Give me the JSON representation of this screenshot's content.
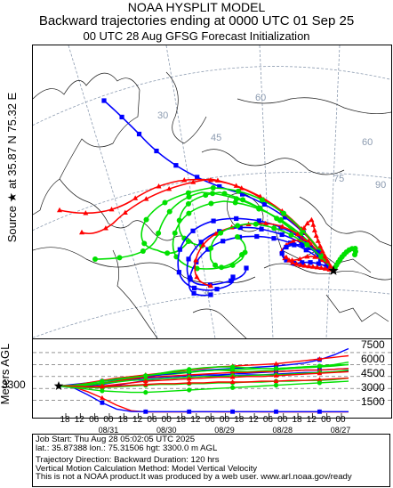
{
  "header": {
    "line1": "NOAA HYSPLIT MODEL",
    "line2": "Backward trajectories ending at 0000 UTC 01 Sep 25",
    "line3": "00 UTC 28 Aug    GFSG  Forecast Initialization"
  },
  "side_labels": {
    "source": "Source ★ at   35.87 N   75.32 E",
    "meters": "Meters AGL"
  },
  "map": {
    "grid_labels": [
      "60",
      "30",
      "45",
      "60",
      "75",
      "90",
      "45",
      "30"
    ],
    "colors": {
      "red": "#ff0000",
      "blue": "#0000ff",
      "green": "#00e000",
      "map_lines": "#1a1a1a",
      "graticule": "#8c9bb0"
    }
  },
  "chart_data": {
    "type": "line",
    "title": "Backward trajectories ending at 0000 UTC 01 Sep 25",
    "ylabel": "Meters AGL",
    "start_height_label": "3300",
    "y_ticks": [
      "7500",
      "6000",
      "4500",
      "3000",
      "1500"
    ],
    "ylim": [
      0,
      8500
    ],
    "x_hour_labels": [
      "18",
      "12",
      "06",
      "00",
      "18",
      "12",
      "06",
      "00",
      "18",
      "12",
      "06",
      "00",
      "18",
      "12",
      "06",
      "00",
      "18",
      "12",
      "06",
      "00"
    ],
    "x_date_labels": [
      "08/31",
      "08/30",
      "08/29",
      "08/28",
      "08/27"
    ],
    "x_hours_back": [
      0,
      120
    ],
    "series": [
      {
        "color": "red",
        "heights": [
          3300,
          3200,
          2600,
          1800,
          900,
          200,
          50,
          50,
          50,
          50,
          80,
          60,
          50,
          80,
          60,
          50,
          50,
          60,
          50,
          50,
          50
        ]
      },
      {
        "color": "blue",
        "heights": [
          3300,
          3100,
          2200,
          1200,
          400,
          100,
          80,
          80,
          80,
          80,
          80,
          80,
          80,
          80,
          80,
          80,
          80,
          80,
          80,
          80,
          80
        ]
      },
      {
        "color": "green",
        "heights": [
          3300,
          3400,
          3600,
          3900,
          4200,
          4500,
          4600,
          4700,
          4800,
          5000,
          5200,
          5300,
          5200,
          5100,
          5200,
          5300,
          5500,
          5600,
          5700,
          5800,
          6000
        ]
      },
      {
        "color": "blue",
        "heights": [
          3300,
          3500,
          3700,
          3900,
          4100,
          4300,
          4500,
          4700,
          4900,
          5100,
          5300,
          5400,
          5500,
          5600,
          5700,
          5800,
          6000,
          6200,
          6600,
          7200,
          8000
        ]
      },
      {
        "color": "red",
        "heights": [
          3300,
          3400,
          3700,
          4000,
          4300,
          4500,
          4700,
          4900,
          5100,
          5300,
          5500,
          5700,
          5800,
          5900,
          6000,
          6100,
          6300,
          6500,
          6700,
          6900,
          7100
        ]
      },
      {
        "color": "green",
        "heights": [
          3300,
          3400,
          3500,
          3700,
          4000,
          4300,
          4600,
          4900,
          5200,
          5400,
          5600,
          5700,
          5700,
          5600,
          5500,
          5500,
          5600,
          5700,
          5800,
          6000,
          6300
        ]
      },
      {
        "color": "blue",
        "heights": [
          3300,
          3200,
          3300,
          3500,
          3800,
          4100,
          4300,
          4400,
          4500,
          4600,
          4700,
          4700,
          4800,
          4900,
          5000,
          5100,
          5200,
          5300,
          5300,
          5400,
          5500
        ]
      },
      {
        "color": "red",
        "heights": [
          3300,
          3300,
          3400,
          3600,
          3900,
          4200,
          4400,
          4500,
          4600,
          4700,
          4800,
          4900,
          5000,
          5000,
          5100,
          5100,
          5200,
          5300,
          5300,
          5400,
          5500
        ]
      },
      {
        "color": "green",
        "heights": [
          3300,
          3400,
          3600,
          3900,
          4200,
          4400,
          4600,
          4800,
          5000,
          5100,
          5200,
          5300,
          5400,
          5400,
          5500,
          5500,
          5600,
          5700,
          5800,
          5900,
          6000
        ]
      },
      {
        "color": "blue",
        "heights": [
          3300,
          3200,
          3100,
          3200,
          3400,
          3700,
          4000,
          4200,
          4300,
          4400,
          4500,
          4600,
          4600,
          4700,
          4700,
          4800,
          4900,
          5000,
          5000,
          5100,
          5200
        ]
      },
      {
        "color": "green",
        "heights": [
          3300,
          3300,
          3400,
          3600,
          3800,
          4000,
          4100,
          4200,
          4300,
          4400,
          4500,
          4500,
          4600,
          4600,
          4700,
          4700,
          4800,
          4900,
          5000,
          5100,
          5300
        ]
      },
      {
        "color": "red",
        "heights": [
          3300,
          3200,
          3200,
          3300,
          3500,
          3700,
          3900,
          4000,
          4100,
          4200,
          4300,
          4400,
          4400,
          4500,
          4500,
          4600,
          4700,
          4800,
          4900,
          5000,
          5100
        ]
      },
      {
        "color": "green",
        "heights": [
          3300,
          3200,
          3100,
          3100,
          3200,
          3300,
          3400,
          3500,
          3500,
          3600,
          3600,
          3700,
          3700,
          3800,
          3800,
          3900,
          3900,
          4000,
          4000,
          4100,
          4300
        ]
      },
      {
        "color": "red",
        "heights": [
          3300,
          3300,
          3200,
          3200,
          3300,
          3400,
          3500,
          3600,
          3600,
          3700,
          3700,
          3800,
          3800,
          3800,
          3900,
          3900,
          4000,
          4000,
          4100,
          4200,
          4300
        ]
      },
      {
        "color": "green",
        "heights": [
          3300,
          3100,
          2900,
          2700,
          2600,
          2500,
          2500,
          2600,
          2700,
          2800,
          2900,
          3000,
          3100,
          3200,
          3300,
          3400,
          3500,
          3600,
          3700,
          3800,
          3900
        ]
      }
    ]
  },
  "info": {
    "line1": "Job Start: Thu Aug 28 05:02:05 UTC 2025",
    "line2": "lat.: 35.87388   lon.: 75.31506   hgt: 3300.0 m AGL",
    "line3": "Trajectory Direction: Backward       Duration: 120 hrs",
    "line4": "Vertical Motion Calculation Method: Model Vertical Velocity",
    "line5": "This is not a NOAA product.It was produced by a web user. www.arl.noaa.gov/ready"
  }
}
